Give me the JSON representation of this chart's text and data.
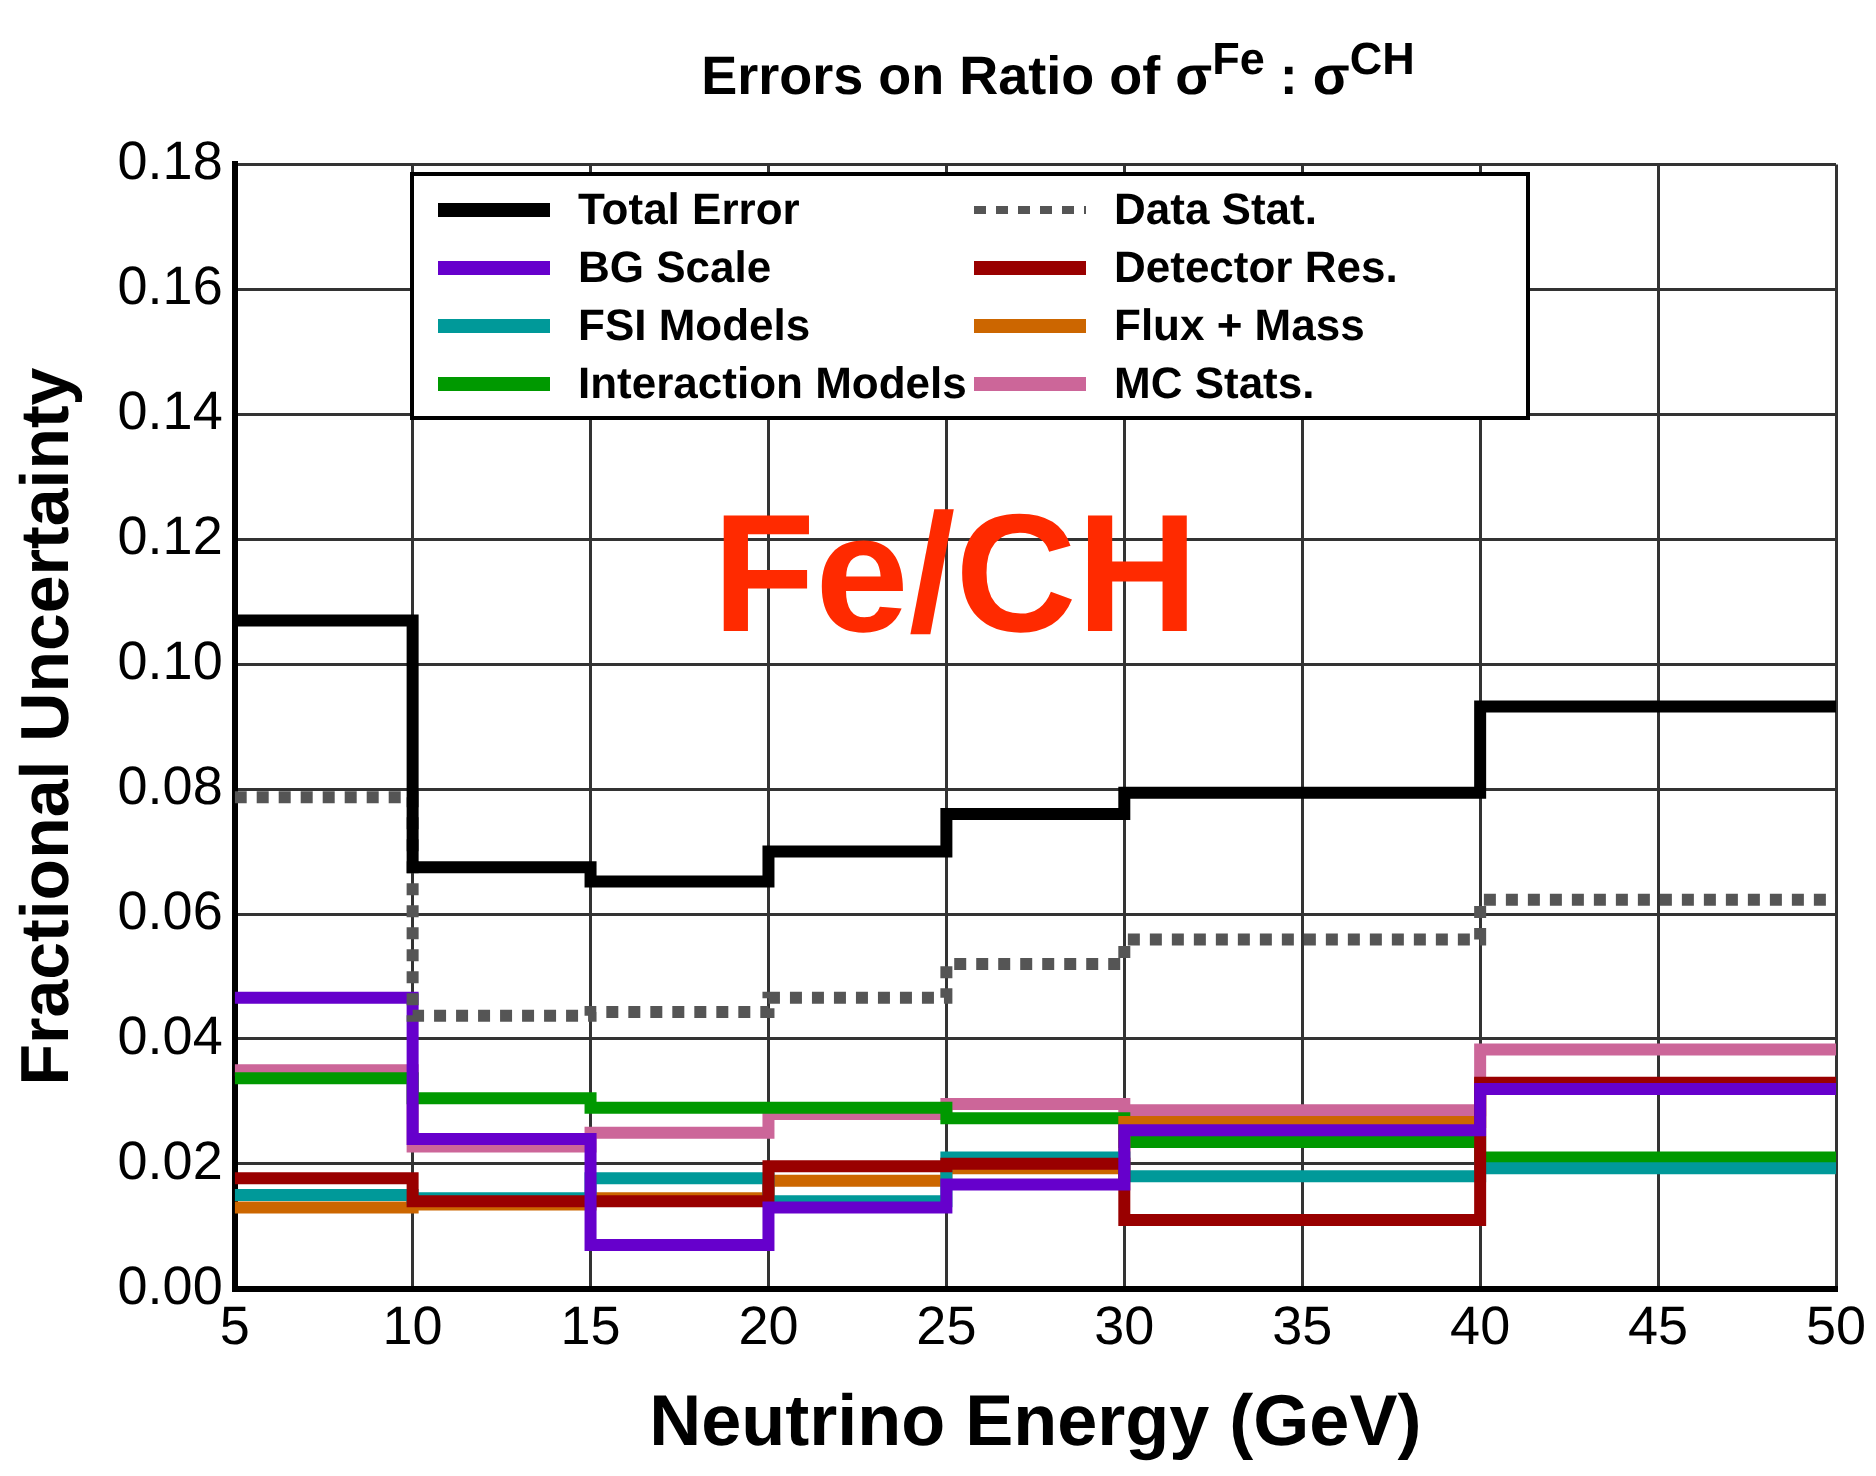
{
  "chart_data": {
    "type": "step",
    "title": "Errors on Ratio of σ$^{Fe}$ : σ$^{CH}$",
    "xlabel": "Neutrino Energy (GeV)",
    "ylabel": "Fractional Uncertainty",
    "annotations": [
      "Fe/CH"
    ],
    "x": [
      5,
      10,
      15,
      20,
      25,
      30,
      40,
      50
    ],
    "series": [
      {
        "name": "Total Error",
        "color": "#000000",
        "values": [
          0.107,
          0.0675,
          0.0652,
          0.07,
          0.076,
          0.0794,
          0.0932,
          0.0932
        ]
      },
      {
        "name": "Data Stat.",
        "color": "#555555",
        "line_style": "dotted",
        "values": [
          0.0787,
          0.0437,
          0.0443,
          0.0466,
          0.052,
          0.0559,
          0.0623,
          0.0623
        ]
      },
      {
        "name": "BG Scale",
        "color": "#6600cc",
        "values": [
          0.0466,
          0.024,
          0.007,
          0.013,
          0.0167,
          0.0254,
          0.032,
          0.032
        ]
      },
      {
        "name": "Detector Res.",
        "color": "#990000",
        "values": [
          0.0177,
          0.014,
          0.014,
          0.0196,
          0.02,
          0.011,
          0.033,
          0.033
        ]
      },
      {
        "name": "FSI Models",
        "color": "#009999",
        "values": [
          0.015,
          0.0145,
          0.0177,
          0.014,
          0.021,
          0.018,
          0.0193,
          0.0193
        ]
      },
      {
        "name": "Flux + Mass",
        "color": "#cc6600",
        "values": [
          0.013,
          0.0135,
          0.0145,
          0.0173,
          0.0193,
          0.0267,
          0.0328,
          0.0328
        ]
      },
      {
        "name": "Interaction Models",
        "color": "#009900",
        "values": [
          0.0337,
          0.0305,
          0.029,
          0.029,
          0.0273,
          0.0235,
          0.021,
          0.021
        ]
      },
      {
        "name": "MC Stats.",
        "color": "#cc6699",
        "values": [
          0.035,
          0.0228,
          0.025,
          0.028,
          0.0296,
          0.0286,
          0.0383,
          0.0383
        ]
      }
    ],
    "xlim": [
      5,
      50
    ],
    "xticks": [
      5,
      10,
      15,
      20,
      25,
      30,
      35,
      40,
      45,
      50
    ],
    "ylim": [
      0,
      0.18
    ],
    "yticks": [
      {
        "value": 0,
        "label": "0.00"
      },
      {
        "value": 0.02,
        "label": "0.02"
      },
      {
        "value": 0.04,
        "label": "0.04"
      },
      {
        "value": 0.06,
        "label": "0.06"
      },
      {
        "value": 0.08,
        "label": "0.08"
      },
      {
        "value": 0.1,
        "label": "0.10"
      },
      {
        "value": 0.12,
        "label": "0.12"
      },
      {
        "value": 0.14,
        "label": "0.14"
      },
      {
        "value": 0.16,
        "label": "0.16"
      },
      {
        "value": 0.18,
        "label": "0.18"
      }
    ],
    "grid": true,
    "legend": "top",
    "line_style": "solid"
  }
}
